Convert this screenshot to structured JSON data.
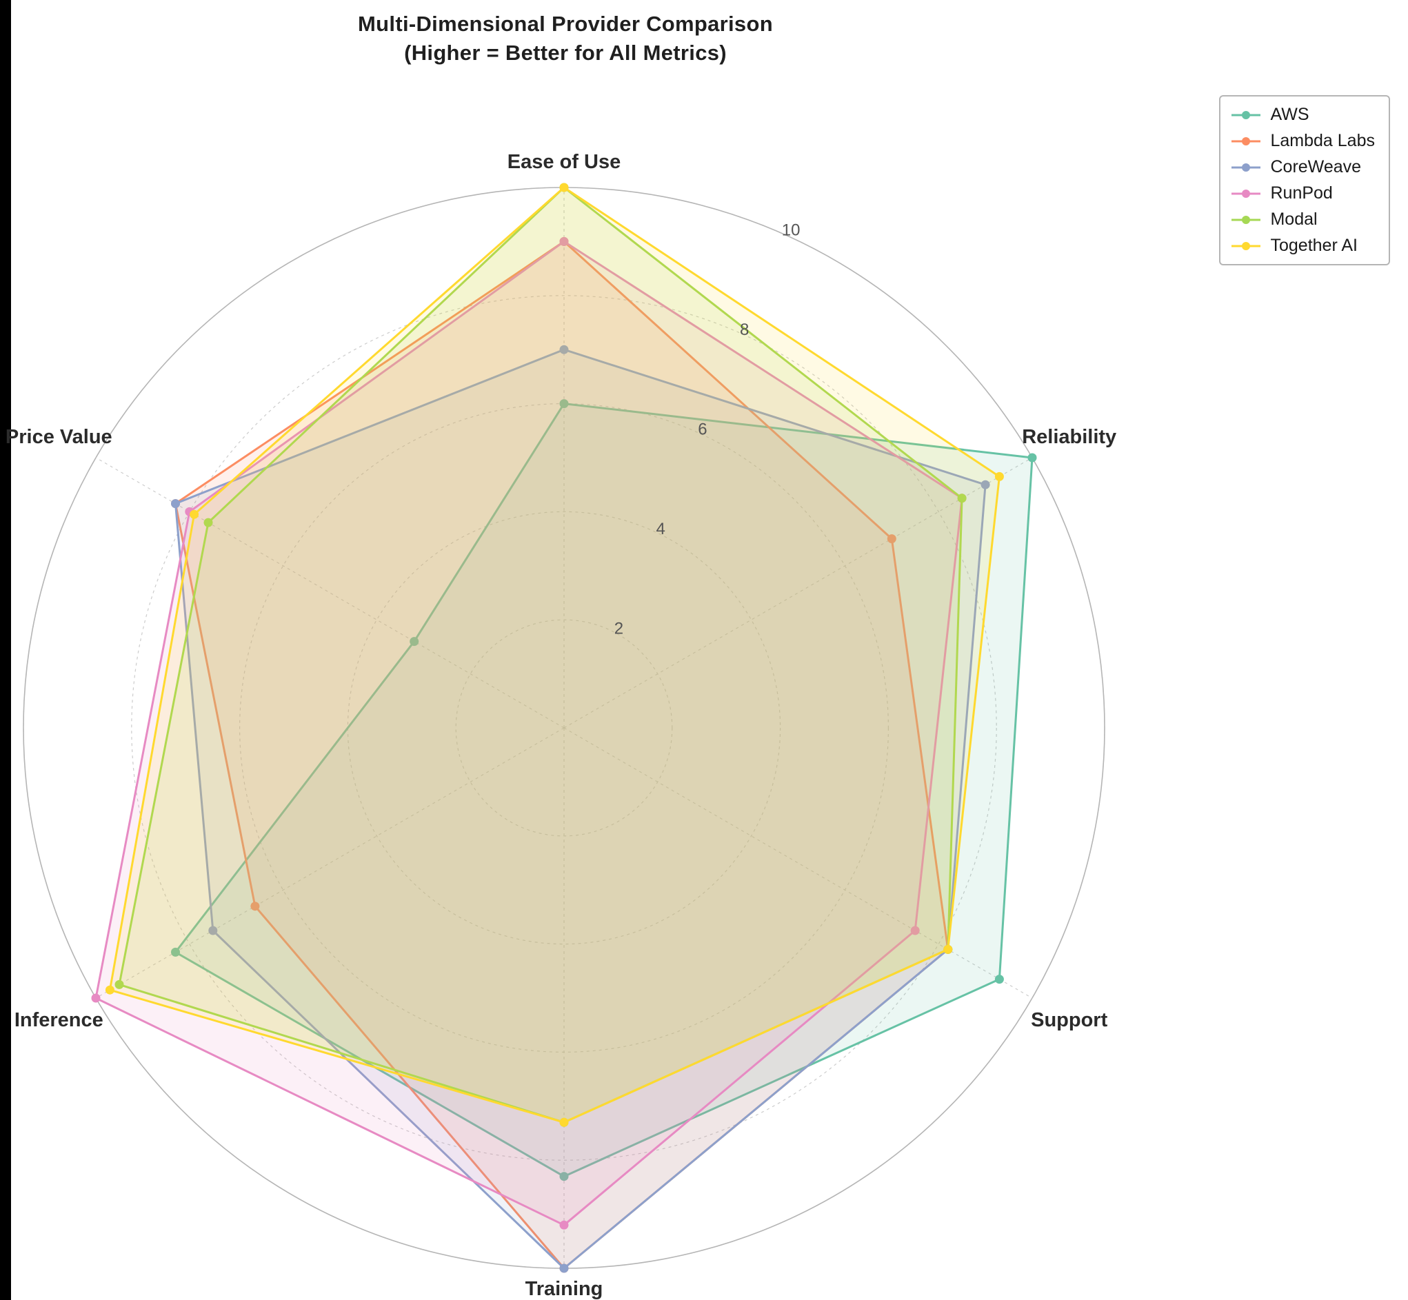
{
  "window": {
    "background": "#ffffff",
    "edge_color": "#000000"
  },
  "title": {
    "line1": "Multi-Dimensional Provider Comparison",
    "line2": "(Higher = Better for All Metrics)"
  },
  "colors": {
    "grid": "#cccccc",
    "outer_ring": "#b5b5b5",
    "tick_label": "#555555",
    "axis_label": "#2b2b2b"
  },
  "chart_data": {
    "type": "radar",
    "title": "Multi-Dimensional Provider Comparison (Higher = Better for All Metrics)",
    "categories": [
      "Ease of Use",
      "Reliability",
      "Support",
      "Training",
      "Inference",
      "Price Value"
    ],
    "radial_ticks": [
      2,
      4,
      6,
      8,
      10
    ],
    "rmax": 10,
    "grid": true,
    "grid_style": "dashed",
    "legend_position": "upper right",
    "fill_opacity": 0.13,
    "series": [
      {
        "name": "AWS",
        "color": "#66c2a5",
        "values": [
          6.0,
          10.0,
          9.3,
          8.3,
          8.3,
          3.2
        ]
      },
      {
        "name": "Lambda Labs",
        "color": "#fc8d62",
        "values": [
          9.0,
          7.0,
          8.2,
          10.0,
          6.6,
          8.3
        ]
      },
      {
        "name": "CoreWeave",
        "color": "#8da0cb",
        "values": [
          7.0,
          9.0,
          8.2,
          10.0,
          7.5,
          8.3
        ]
      },
      {
        "name": "RunPod",
        "color": "#e78ac3",
        "values": [
          9.0,
          8.5,
          7.5,
          9.2,
          10.0,
          8.0
        ]
      },
      {
        "name": "Modal",
        "color": "#a6d854",
        "values": [
          10.0,
          8.5,
          8.2,
          7.3,
          9.5,
          7.6
        ]
      },
      {
        "name": "Together AI",
        "color": "#ffd92f",
        "values": [
          10.0,
          9.3,
          8.2,
          7.3,
          9.7,
          7.9
        ]
      }
    ]
  }
}
